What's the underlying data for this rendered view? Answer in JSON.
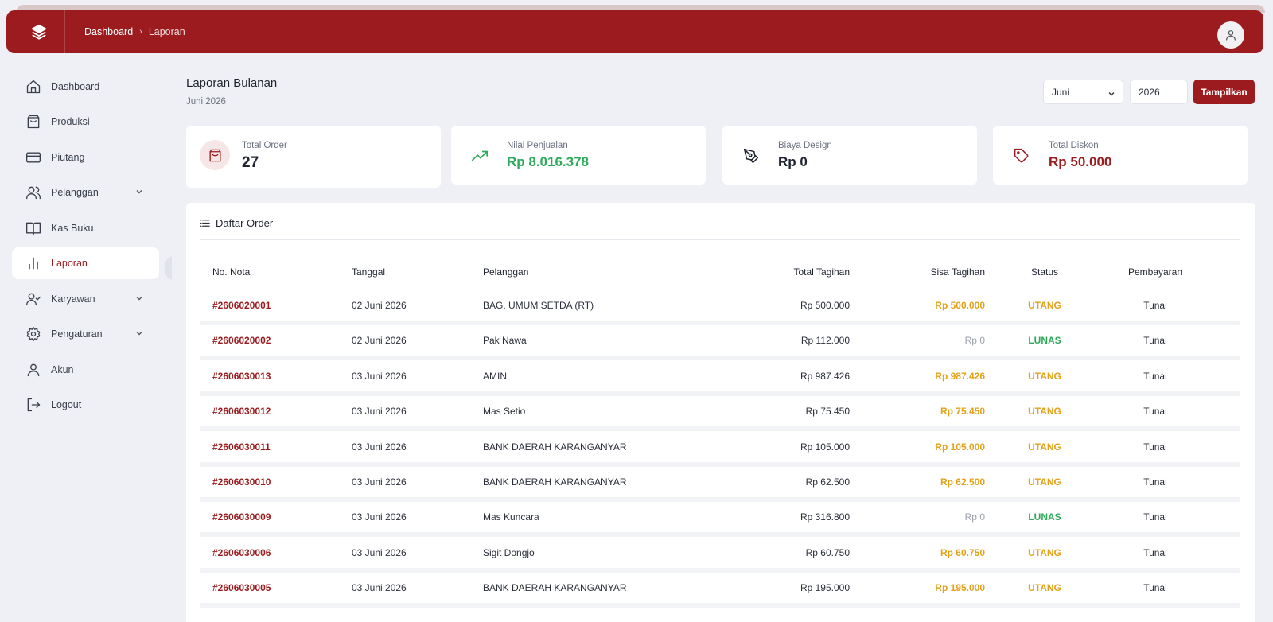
{
  "header": {
    "breadcrumb": [
      "Dashboard",
      "Laporan"
    ],
    "colors": {
      "brand": "#9b1b1e",
      "success": "#2eaa5b",
      "warning": "#e3a21a"
    }
  },
  "sidebar": {
    "items": [
      {
        "label": "Dashboard",
        "icon": "home-icon"
      },
      {
        "label": "Produksi",
        "icon": "shopping-bag-icon"
      },
      {
        "label": "Piutang",
        "icon": "credit-card-icon"
      },
      {
        "label": "Pelanggan",
        "icon": "users-icon",
        "expandable": true
      },
      {
        "label": "Kas Buku",
        "icon": "book-open-icon"
      },
      {
        "label": "Laporan",
        "icon": "bar-chart-icon",
        "active": true
      },
      {
        "label": "Karyawan",
        "icon": "user-check-icon",
        "expandable": true
      },
      {
        "label": "Pengaturan",
        "icon": "gear-icon",
        "expandable": true
      },
      {
        "label": "Akun",
        "icon": "user-icon"
      },
      {
        "label": "Logout",
        "icon": "logout-icon"
      }
    ]
  },
  "page": {
    "title": "Laporan Bulanan",
    "subtitle": "Juni 2026",
    "month": "Juni",
    "year": "2026",
    "show_button": "Tampilkan"
  },
  "cards": [
    {
      "label": "Total Order",
      "value": "27",
      "icon": "shopping-bag-icon"
    },
    {
      "label": "Nilai Penjualan",
      "value": "Rp 8.016.378",
      "icon": "trending-up-icon"
    },
    {
      "label": "Biaya Design",
      "value": "Rp 0",
      "icon": "pen-tool-icon"
    },
    {
      "label": "Total Diskon",
      "value": "Rp 50.000",
      "icon": "tag-icon"
    }
  ],
  "orders": {
    "title": "Daftar Order",
    "columns": [
      "No. Nota",
      "Tanggal",
      "Pelanggan",
      "Total Tagihan",
      "Sisa Tagihan",
      "Status",
      "Pembayaran"
    ],
    "rows": [
      {
        "nota": "#2606020001",
        "tanggal": "02 Juni 2026",
        "pelanggan": "BAG. UMUM SETDA (RT)",
        "total": "Rp 500.000",
        "sisa": "Rp 500.000",
        "status": "UTANG",
        "pembayaran": "Tunai"
      },
      {
        "nota": "#2606020002",
        "tanggal": "02 Juni 2026",
        "pelanggan": "Pak Nawa",
        "total": "Rp 112.000",
        "sisa": "Rp 0",
        "status": "LUNAS",
        "pembayaran": "Tunai"
      },
      {
        "nota": "#2606030013",
        "tanggal": "03 Juni 2026",
        "pelanggan": "AMIN",
        "total": "Rp 987.426",
        "sisa": "Rp 987.426",
        "status": "UTANG",
        "pembayaran": "Tunai"
      },
      {
        "nota": "#2606030012",
        "tanggal": "03 Juni 2026",
        "pelanggan": "Mas Setio",
        "total": "Rp 75.450",
        "sisa": "Rp 75.450",
        "status": "UTANG",
        "pembayaran": "Tunai"
      },
      {
        "nota": "#2606030011",
        "tanggal": "03 Juni 2026",
        "pelanggan": "BANK DAERAH KARANGANYAR",
        "total": "Rp 105.000",
        "sisa": "Rp 105.000",
        "status": "UTANG",
        "pembayaran": "Tunai"
      },
      {
        "nota": "#2606030010",
        "tanggal": "03 Juni 2026",
        "pelanggan": "BANK DAERAH KARANGANYAR",
        "total": "Rp 62.500",
        "sisa": "Rp 62.500",
        "status": "UTANG",
        "pembayaran": "Tunai"
      },
      {
        "nota": "#2606030009",
        "tanggal": "03 Juni 2026",
        "pelanggan": "Mas Kuncara",
        "total": "Rp 316.800",
        "sisa": "Rp 0",
        "status": "LUNAS",
        "pembayaran": "Tunai"
      },
      {
        "nota": "#2606030006",
        "tanggal": "03 Juni 2026",
        "pelanggan": "Sigit Dongjo",
        "total": "Rp 60.750",
        "sisa": "Rp 60.750",
        "status": "UTANG",
        "pembayaran": "Tunai"
      },
      {
        "nota": "#2606030005",
        "tanggal": "03 Juni 2026",
        "pelanggan": "BANK DAERAH KARANGANYAR",
        "total": "Rp 195.000",
        "sisa": "Rp 195.000",
        "status": "UTANG",
        "pembayaran": "Tunai"
      }
    ]
  }
}
